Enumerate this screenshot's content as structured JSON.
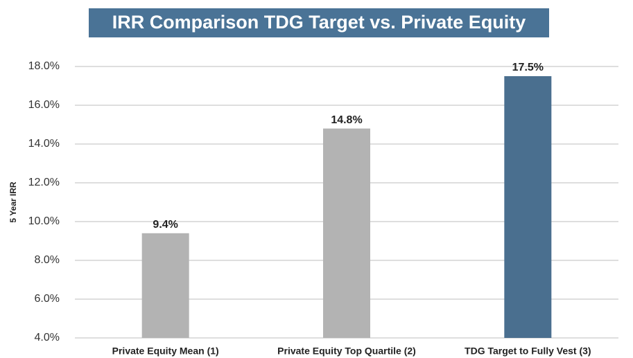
{
  "chart_data": {
    "type": "bar",
    "title": "IRR Comparison TDG Target vs. Private Equity",
    "ylabel": "5 Year IRR",
    "categories": [
      "Private Equity Mean (1)",
      "Private Equity Top Quartile (2)",
      "TDG Target to Fully Vest (3)"
    ],
    "values": [
      9.4,
      14.8,
      17.5
    ],
    "value_labels": [
      "9.4%",
      "14.8%",
      "17.5%"
    ],
    "colors": [
      "#b3b3b3",
      "#b3b3b3",
      "#4a6f8f"
    ],
    "ylim": [
      4,
      18
    ],
    "yticks": [
      {
        "value": 4,
        "label": "4.0%"
      },
      {
        "value": 6,
        "label": "6.0%"
      },
      {
        "value": 8,
        "label": "8.0%"
      },
      {
        "value": 10,
        "label": "10.0%"
      },
      {
        "value": 12,
        "label": "12.0%"
      },
      {
        "value": 14,
        "label": "14.0%"
      },
      {
        "value": 16,
        "label": "16.0%"
      },
      {
        "value": 18,
        "label": "18.0%"
      }
    ],
    "grid": true
  }
}
